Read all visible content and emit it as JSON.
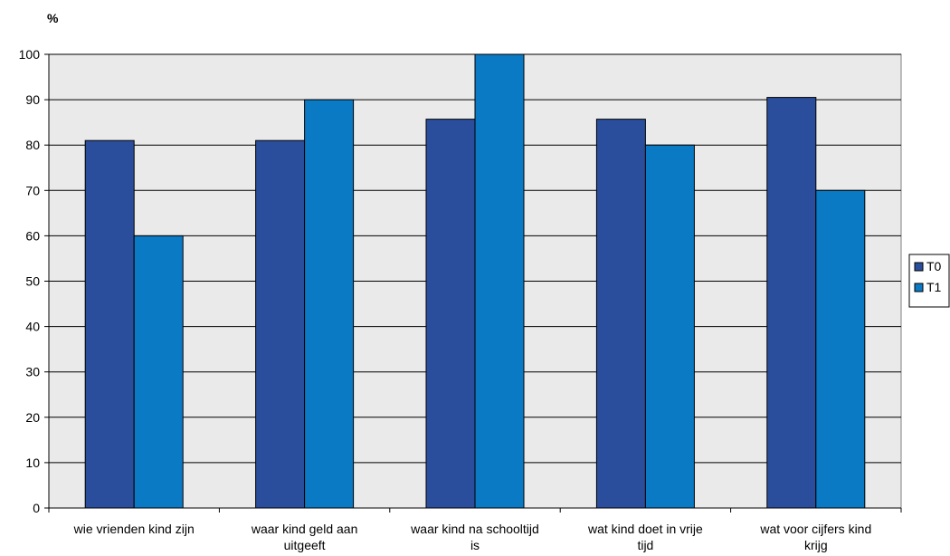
{
  "chart_data": {
    "type": "bar",
    "ylabel": "%",
    "xlabel": "",
    "ylim": [
      0,
      100
    ],
    "yticks": [
      0,
      10,
      20,
      30,
      40,
      50,
      60,
      70,
      80,
      90,
      100
    ],
    "grid": true,
    "legend_position": "right",
    "categories": [
      [
        "wie vrienden kind zijn"
      ],
      [
        "waar kind geld aan",
        "uitgeeft"
      ],
      [
        "waar kind na schooltijd",
        "is"
      ],
      [
        "wat kind doet in vrije",
        "tijd"
      ],
      [
        "wat voor cijfers kind",
        "krijg"
      ]
    ],
    "series": [
      {
        "name": "T0",
        "color": "#2B4E9C",
        "values": [
          81,
          81,
          85.7,
          85.7,
          90.5
        ]
      },
      {
        "name": "T1",
        "color": "#0A7AC4",
        "values": [
          60,
          90,
          100,
          80,
          70
        ]
      }
    ],
    "plot_background": "#EAEAEA"
  }
}
